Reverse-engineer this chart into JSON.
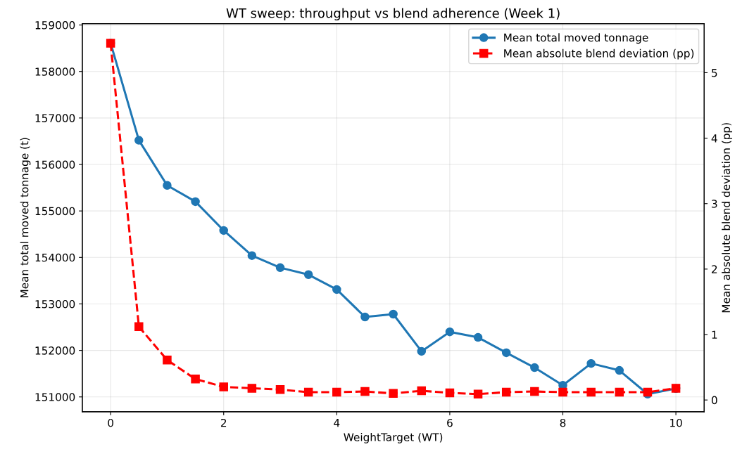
{
  "chart_data": {
    "type": "line",
    "title": "WT sweep: throughput vs blend adherence (Week 1)",
    "xlabel": "WeightTarget (WT)",
    "ylabel": "Mean total moved tonnage (t)",
    "y2label": "Mean absolute blend deviation (pp)",
    "x": [
      0,
      0.5,
      1,
      1.5,
      2,
      2.5,
      3,
      3.5,
      4,
      4.5,
      5,
      5.5,
      6,
      6.5,
      7,
      7.5,
      8,
      8.5,
      9,
      9.5,
      10
    ],
    "series": [
      {
        "name": "Mean total moved tonnage",
        "color": "#1f77b4",
        "marker": "circle",
        "line_style": "solid",
        "values": [
          158610,
          156520,
          155550,
          155200,
          154580,
          154040,
          153780,
          153630,
          153310,
          152720,
          152780,
          151980,
          152400,
          152280,
          151950,
          151630,
          151250,
          151720,
          151570,
          151060,
          151180
        ]
      },
      {
        "name": "Mean absolute blend deviation (pp)",
        "color": "#ff0000",
        "marker": "square",
        "line_style": "dashed",
        "axis": "y2",
        "values": [
          5.45,
          1.12,
          0.61,
          0.32,
          0.2,
          0.18,
          0.16,
          0.12,
          0.12,
          0.13,
          0.1,
          0.14,
          0.11,
          0.09,
          0.12,
          0.13,
          0.12,
          0.12,
          0.12,
          0.12,
          0.18
        ]
      }
    ],
    "xlim": [
      -0.5,
      10.5
    ],
    "xticks": [
      0,
      2,
      4,
      6,
      8,
      10
    ],
    "ylim": [
      150680,
      159030
    ],
    "yticks": [
      151000,
      152000,
      153000,
      154000,
      155000,
      156000,
      157000,
      158000,
      159000
    ],
    "y2lim": [
      -0.18,
      5.75
    ],
    "y2ticks": [
      0,
      1,
      2,
      3,
      4,
      5
    ],
    "grid": true,
    "legend": "top right"
  }
}
